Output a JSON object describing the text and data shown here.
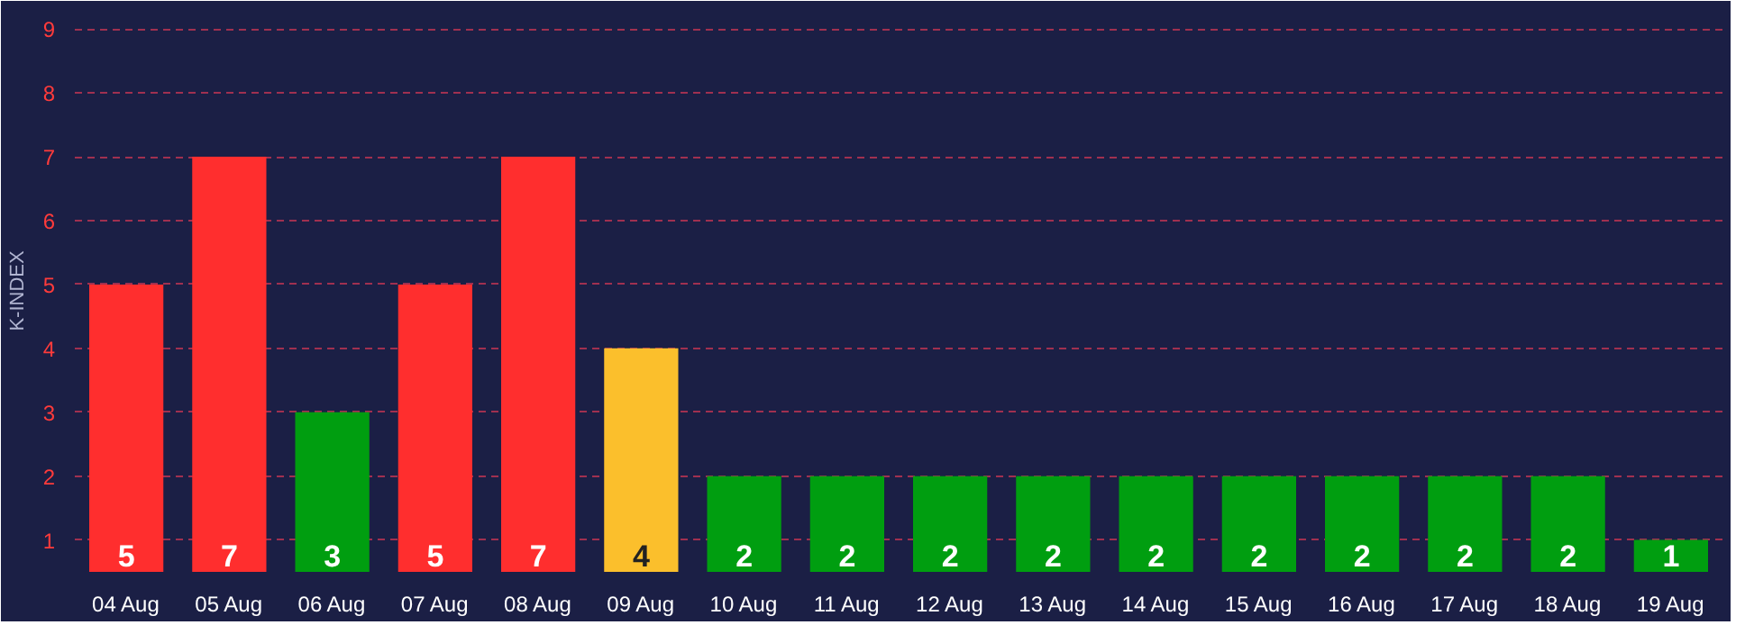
{
  "chart_data": {
    "type": "bar",
    "ylabel": "K-INDEX",
    "categories": [
      "04 Aug",
      "05 Aug",
      "06 Aug",
      "07 Aug",
      "08 Aug",
      "09 Aug",
      "10 Aug",
      "11 Aug",
      "12 Aug",
      "13 Aug",
      "14 Aug",
      "15 Aug",
      "16 Aug",
      "17 Aug",
      "18 Aug",
      "19 Aug"
    ],
    "values": [
      5,
      7,
      3,
      5,
      7,
      4,
      2,
      2,
      2,
      2,
      2,
      2,
      2,
      2,
      2,
      1
    ],
    "colors": [
      "#ff2e2e",
      "#ff2e2e",
      "#009e10",
      "#ff2e2e",
      "#ff2e2e",
      "#fbbf2c",
      "#009e10",
      "#009e10",
      "#009e10",
      "#009e10",
      "#009e10",
      "#009e10",
      "#009e10",
      "#009e10",
      "#009e10",
      "#009e10"
    ],
    "ylim": [
      0.5,
      9.3
    ],
    "yticks": [
      1,
      2,
      3,
      4,
      5,
      6,
      7,
      8,
      9
    ],
    "grid": "y",
    "data_labels": true
  }
}
